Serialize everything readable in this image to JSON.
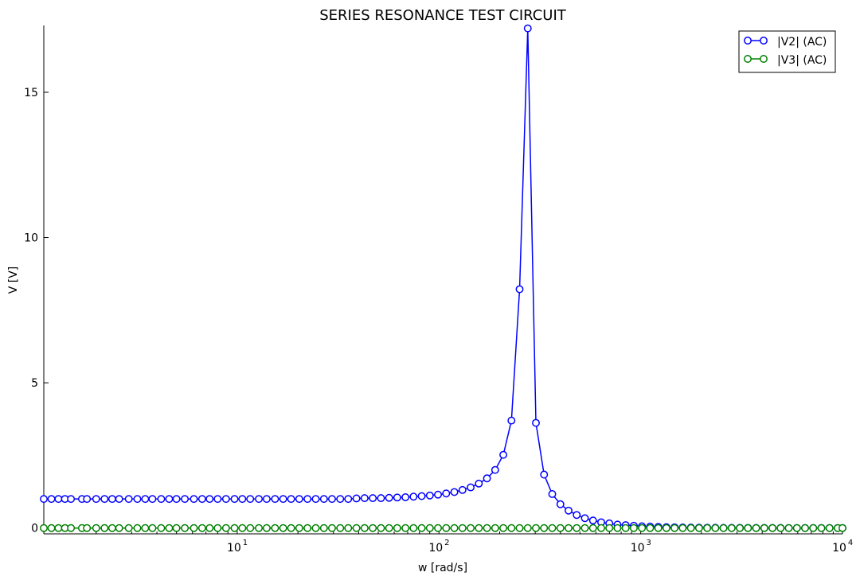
{
  "chart_data": {
    "type": "line",
    "title": "SERIES RESONANCE TEST CIRCUIT",
    "xlabel": "w [rad/s]",
    "ylabel": "V [V]",
    "xscale": "log",
    "xlim": [
      1.1,
      10000
    ],
    "ylim": [
      -0.2,
      17.3
    ],
    "x_ticks": [
      {
        "value": 10,
        "base": "10",
        "exp": "1"
      },
      {
        "value": 100,
        "base": "10",
        "exp": "2"
      },
      {
        "value": 1000,
        "base": "10",
        "exp": "3"
      },
      {
        "value": 10000,
        "base": "10",
        "exp": "4"
      }
    ],
    "y_ticks": [
      {
        "value": 0,
        "label": "0"
      },
      {
        "value": 5,
        "label": "5"
      },
      {
        "value": 10,
        "label": "10"
      },
      {
        "value": 15,
        "label": "15"
      }
    ],
    "grid": false,
    "legend_position": "top-right",
    "x": [
      1.1,
      1.2,
      1.3,
      1.4,
      1.5,
      1.7,
      1.8,
      2.0,
      2.2,
      2.4,
      2.6,
      2.9,
      3.2,
      3.5,
      3.8,
      4.2,
      4.6,
      5.0,
      5.5,
      6.1,
      6.7,
      7.3,
      8.0,
      8.8,
      9.7,
      10.6,
      11.6,
      12.8,
      14.0,
      15.4,
      16.9,
      18.5,
      20.3,
      22.3,
      24.5,
      26.9,
      29.5,
      32.4,
      35.5,
      39.0,
      42.8,
      47.0,
      51.6,
      56.6,
      62.1,
      68.2,
      74.8,
      82.1,
      90.1,
      98.9,
      108.6,
      119.2,
      130.8,
      143.6,
      157.6,
      173.0,
      189.9,
      208.4,
      228.7,
      251.0,
      275.5,
      302.4,
      331.9,
      364.3,
      399.8,
      438.8,
      481.6,
      528.6,
      580.2,
      636.8,
      698.9,
      767.1,
      841.9,
      924.0,
      1014.1,
      1113.0,
      1221.6,
      1340.8,
      1471.6,
      1615.1,
      1772.7,
      1945.6,
      2135.4,
      2343.7,
      2572.3,
      2823.2,
      3098.6,
      3400.9,
      3732.6,
      4096.7,
      4496.4,
      4935.0,
      5416.4,
      5944.8,
      6524.7,
      7161.2,
      7859.8,
      8626.5,
      9468.0,
      10000.0
    ],
    "series": [
      {
        "name": "|V2| (AC)",
        "color": "#0000ff",
        "values": [
          1.0,
          1.0,
          1.0,
          1.0,
          1.0,
          1.0,
          1.0,
          1.0,
          1.0,
          1.0,
          1.0,
          1.0,
          1.0,
          1.0,
          1.0,
          1.0,
          1.0,
          1.0,
          1.0,
          1.0,
          1.0,
          1.0,
          1.0,
          1.0,
          1.0,
          1.0,
          1.0,
          1.0,
          1.0,
          1.0,
          1.0,
          1.0,
          1.0,
          1.0,
          1.0,
          1.0,
          1.0,
          1.0,
          1.0,
          1.02,
          1.03,
          1.03,
          1.03,
          1.04,
          1.05,
          1.06,
          1.08,
          1.1,
          1.12,
          1.15,
          1.19,
          1.24,
          1.31,
          1.4,
          1.53,
          1.71,
          2.0,
          2.52,
          3.7,
          8.22,
          17.2,
          3.62,
          1.84,
          1.17,
          0.82,
          0.6,
          0.45,
          0.34,
          0.26,
          0.2,
          0.16,
          0.12,
          0.1,
          0.08,
          0.06,
          0.05,
          0.04,
          0.03,
          0.025,
          0.02,
          0.016,
          0.013,
          0.011,
          0.009,
          0.007,
          0.006,
          0.005,
          0.004,
          0.003,
          0.003,
          0.002,
          0.002,
          0.0015,
          0.001,
          0.001,
          0.001,
          0.001,
          0.001,
          0.001,
          0.001
        ]
      },
      {
        "name": "|V3| (AC)",
        "color": "#008000",
        "values": [
          0.0,
          0.0,
          0.0,
          0.0,
          0.0,
          0.0,
          0.0,
          0.0,
          0.0,
          0.0,
          0.0,
          0.0,
          0.0,
          0.0,
          0.0,
          0.0,
          0.0,
          0.0,
          0.0,
          0.0,
          0.0,
          0.0,
          0.0,
          0.0,
          0.0,
          0.0,
          0.0,
          0.0,
          0.0,
          0.0,
          0.0,
          0.0,
          0.0,
          0.0,
          0.0,
          0.0,
          0.0,
          0.0,
          0.0,
          0.0,
          0.0,
          0.0,
          0.0,
          0.0,
          0.0,
          0.0,
          0.0,
          0.0,
          0.0,
          0.0,
          0.0,
          0.0,
          0.0,
          0.0,
          0.0,
          0.0,
          0.0,
          0.0,
          0.0,
          0.0,
          0.0,
          0.0,
          0.0,
          0.0,
          0.0,
          0.0,
          0.0,
          0.0,
          0.0,
          0.0,
          0.0,
          0.0,
          0.0,
          0.0,
          0.0,
          0.0,
          0.0,
          0.0,
          0.0,
          0.0,
          0.0,
          0.0,
          0.0,
          0.0,
          0.0,
          0.0,
          0.0,
          0.0,
          0.0,
          0.0,
          0.0,
          0.0,
          0.0,
          0.0,
          0.0,
          0.0,
          0.0,
          0.0,
          0.0,
          0.0
        ]
      }
    ]
  }
}
